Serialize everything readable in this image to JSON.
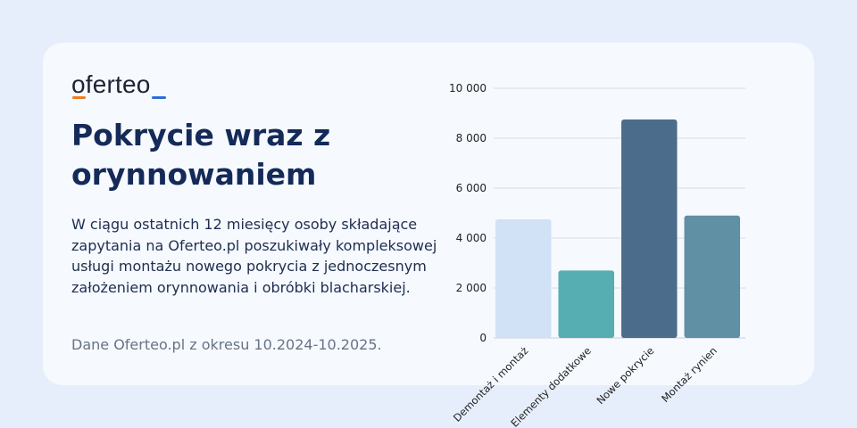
{
  "brand": {
    "name": "oferteo"
  },
  "heading": {
    "title": "Pokrycie wraz z orynnowaniem"
  },
  "description": "W ciągu ostatnich 12 miesięcy osoby składające zapytania na Oferteo.pl poszukiwały kompleksowej usługi montażu nowego pokrycia z jednoczesnym założeniem orynnowania i obróbki blacharskiej.",
  "source_note": "Dane Oferteo.pl z okresu 10.2024-10.2025.",
  "colors": {
    "brand_orange": "#f07d22",
    "brand_blue": "#2a6fd6",
    "title": "#142a58"
  },
  "chart_data": {
    "type": "bar",
    "categories": [
      "Demontaż i montaż",
      "Elementy dodatkowe",
      "Nowe pokrycie",
      "Montaż rynien"
    ],
    "values": [
      4750,
      2700,
      8750,
      4900
    ],
    "bar_colors": [
      "#d1e1f6",
      "#56aeb2",
      "#4b6d8b",
      "#6090a3"
    ],
    "ylim": [
      0,
      10000
    ],
    "yticks": [
      "0",
      "2 000",
      "4 000",
      "6 000",
      "8 000",
      "10 000"
    ],
    "ytick_values": [
      0,
      2000,
      4000,
      6000,
      8000,
      10000
    ],
    "grid": true,
    "title": "",
    "xlabel": "",
    "ylabel": ""
  }
}
